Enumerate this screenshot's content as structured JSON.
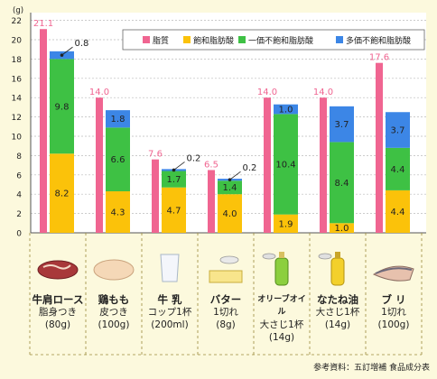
{
  "chart_data": {
    "type": "bar",
    "unit_label": "(g)",
    "ylim": [
      0,
      22
    ],
    "yticks": [
      0,
      2,
      4,
      6,
      8,
      10,
      12,
      14,
      16,
      18,
      20,
      22
    ],
    "legend": [
      {
        "key": "total",
        "label": "脂質",
        "color": "#f06591"
      },
      {
        "key": "sat",
        "label": "飽和脂肪酸",
        "color": "#fbc20a"
      },
      {
        "key": "mono",
        "label": "一価不飽和脂肪酸",
        "color": "#3ec144"
      },
      {
        "key": "poly",
        "label": "多価不飽和脂肪酸",
        "color": "#3c86e6"
      }
    ],
    "categories": [
      {
        "name": "牛肩ロース",
        "portion": "脂身つき",
        "weight": "(80g)",
        "icon": "beef-icon",
        "total": 21.1,
        "sat": 8.2,
        "mono": 9.8,
        "poly": 0.8
      },
      {
        "name": "鶏もも",
        "portion": "皮つき",
        "weight": "(100g)",
        "icon": "chicken-icon",
        "total": 14.0,
        "sat": 4.3,
        "mono": 6.6,
        "poly": 1.8
      },
      {
        "name": "牛 乳",
        "portion": "コップ1杯",
        "weight": "(200ml)",
        "icon": "milk-icon",
        "total": 7.6,
        "sat": 4.7,
        "mono": 1.7,
        "poly": 0.2
      },
      {
        "name": "バター",
        "portion": "1切れ",
        "weight": "(8g)",
        "icon": "butter-icon",
        "total": 6.5,
        "sat": 4.0,
        "mono": 1.4,
        "poly": 0.2
      },
      {
        "name": "オリーブオイル",
        "portion": "大さじ1杯",
        "weight": "(14g)",
        "icon": "olive-oil-icon",
        "total": 14.0,
        "sat": 1.9,
        "mono": 10.4,
        "poly": 1.0
      },
      {
        "name": "なたね油",
        "portion": "大さじ1杯",
        "weight": "(14g)",
        "icon": "canola-oil-icon",
        "total": 14.0,
        "sat": 1.0,
        "mono": 8.4,
        "poly": 3.7
      },
      {
        "name": "ブ リ",
        "portion": "1切れ",
        "weight": "(100g)",
        "icon": "yellowtail-icon",
        "total": 17.6,
        "sat": 4.4,
        "mono": 4.4,
        "poly": 3.7
      }
    ]
  },
  "source": "参考資料：五訂増補 食品成分表"
}
